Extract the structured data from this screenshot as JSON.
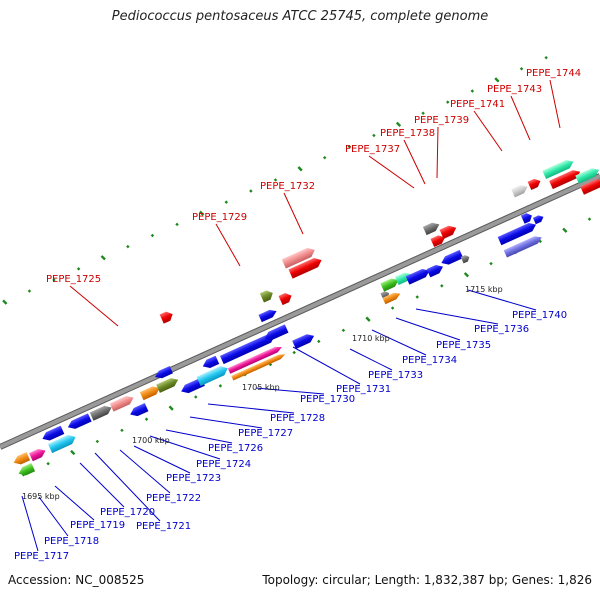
{
  "title": "Pediococcus pentosaceus ATCC 25745, complete genome",
  "footer": {
    "accession_label": "Accession:",
    "accession": "NC_008525",
    "topology_label": "Topology:",
    "topology": "circular",
    "length_label": "Length:",
    "length": "1,832,387 bp",
    "genes_label": "Genes:",
    "genes": "1,826"
  },
  "colors": {
    "backbone": "#9a9a9a",
    "tick": "#1e8a1e",
    "forward_label": "#cc0000",
    "reverse_label": "#0000cc",
    "scale_label": "#222222"
  },
  "scale_labels": [
    "1695 kbp",
    "1700 kbp",
    "1705 kbp",
    "1710 kbp",
    "1715 kbp"
  ],
  "forward_labels": [
    "PEPE_1725",
    "PEPE_1729",
    "PEPE_1732",
    "PEPE_1737",
    "PEPE_1738",
    "PEPE_1739",
    "PEPE_1741",
    "PEPE_1743",
    "PEPE_1744"
  ],
  "reverse_labels": [
    "PEPE_1717",
    "PEPE_1718",
    "PEPE_1719",
    "PEPE_1720",
    "PEPE_1721",
    "PEPE_1722",
    "PEPE_1723",
    "PEPE_1724",
    "PEPE_1726",
    "PEPE_1727",
    "PEPE_1728",
    "PEPE_1730",
    "PEPE_1731",
    "PEPE_1733",
    "PEPE_1734",
    "PEPE_1735",
    "PEPE_1736",
    "PEPE_1740"
  ]
}
